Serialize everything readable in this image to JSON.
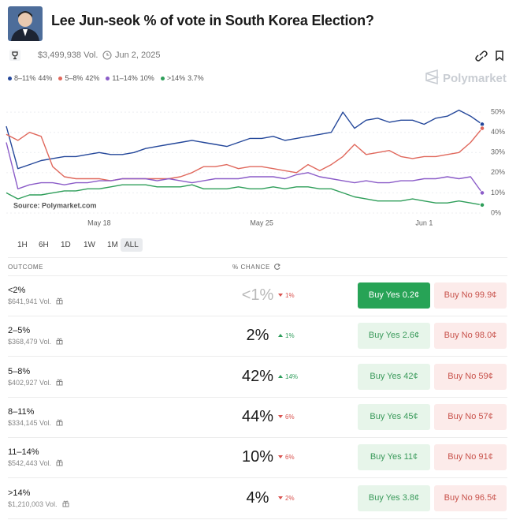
{
  "header": {
    "title": "Lee Jun-seok % of vote in South Korea Election?",
    "volume": "$3,499,938 Vol.",
    "date": "Jun 2, 2025",
    "brand": "Polymarket"
  },
  "chart_data": {
    "type": "line",
    "source": "Source: Polymarket.com",
    "categories": [
      null,
      null,
      null,
      null,
      null,
      null,
      null,
      null,
      "May 18",
      null,
      null,
      null,
      null,
      null,
      null,
      null,
      null,
      null,
      null,
      null,
      null,
      null,
      "May 25",
      null,
      null,
      null,
      null,
      null,
      null,
      null,
      null,
      null,
      null,
      null,
      null,
      null,
      "Jun 1",
      null,
      null,
      null,
      null,
      null
    ],
    "series": [
      {
        "name": "8–11%",
        "latest_label": "44%",
        "color": "#24479a",
        "values": [
          43,
          22,
          24,
          26,
          27,
          28,
          28,
          29,
          30,
          29,
          29,
          30,
          32,
          33,
          34,
          35,
          36,
          35,
          34,
          33,
          35,
          37,
          37,
          38,
          36,
          37,
          38,
          39,
          40,
          50,
          42,
          46,
          47,
          45,
          46,
          46,
          44,
          47,
          48,
          51,
          48,
          44
        ]
      },
      {
        "name": "5–8%",
        "latest_label": "42%",
        "color": "#e0685c",
        "values": [
          39,
          36,
          40,
          38,
          23,
          18,
          17,
          17,
          17,
          16,
          17,
          17,
          17,
          17,
          17,
          18,
          20,
          23,
          23,
          24,
          22,
          23,
          23,
          22,
          21,
          20,
          24,
          21,
          24,
          28,
          34,
          29,
          30,
          31,
          28,
          27,
          28,
          28,
          29,
          30,
          35,
          42
        ]
      },
      {
        "name": "11–14%",
        "latest_label": "10%",
        "color": "#8b5cc8",
        "values": [
          35,
          12,
          14,
          15,
          15,
          14,
          15,
          15,
          16,
          16,
          17,
          17,
          17,
          16,
          17,
          16,
          15,
          16,
          17,
          17,
          17,
          18,
          18,
          18,
          17,
          19,
          20,
          18,
          17,
          16,
          15,
          16,
          15,
          15,
          16,
          16,
          17,
          17,
          18,
          17,
          18,
          10
        ]
      },
      {
        "name": ">14%",
        "latest_label": "3.7%",
        "color": "#2f9e5a",
        "values": [
          10,
          7,
          9,
          9,
          10,
          11,
          11,
          12,
          12,
          13,
          14,
          14,
          14,
          13,
          13,
          13,
          14,
          12,
          12,
          12,
          13,
          12,
          12,
          13,
          12,
          13,
          13,
          12,
          12,
          10,
          8,
          7,
          6,
          6,
          6,
          7,
          6,
          5,
          5,
          6,
          5,
          4
        ]
      }
    ],
    "ylim": [
      0,
      52
    ],
    "yticks": [
      {
        "value": 0,
        "label": "0%"
      },
      {
        "value": 10,
        "label": "10%"
      },
      {
        "value": 20,
        "label": "20%"
      },
      {
        "value": 30,
        "label": "30%"
      },
      {
        "value": 40,
        "label": "40%"
      },
      {
        "value": 50,
        "label": "50%"
      }
    ],
    "grid": true
  },
  "timeframes": {
    "options": [
      "1H",
      "6H",
      "1D",
      "1W",
      "1M",
      "ALL"
    ],
    "selected": "ALL"
  },
  "table": {
    "columns": [
      "OUTCOME",
      "% CHANCE"
    ],
    "rows": [
      {
        "name": "<2%",
        "volume": "$641,941 Vol.",
        "chance": "<1%",
        "change": "1%",
        "change_direction": "down",
        "buy_yes": "Buy Yes 0.2¢",
        "buy_no": "Buy No 99.9¢"
      },
      {
        "name": "2–5%",
        "volume": "$368,479 Vol.",
        "chance": "2%",
        "change": "1%",
        "change_direction": "up",
        "buy_yes": "Buy Yes 2.6¢",
        "buy_no": "Buy No 98.0¢"
      },
      {
        "name": "5–8%",
        "volume": "$402,927 Vol.",
        "chance": "42%",
        "change": "14%",
        "change_direction": "up",
        "buy_yes": "Buy Yes 42¢",
        "buy_no": "Buy No 59¢"
      },
      {
        "name": "8–11%",
        "volume": "$334,145 Vol.",
        "chance": "44%",
        "change": "6%",
        "change_direction": "down",
        "buy_yes": "Buy Yes 45¢",
        "buy_no": "Buy No 57¢"
      },
      {
        "name": "11–14%",
        "volume": "$542,443 Vol.",
        "chance": "10%",
        "change": "6%",
        "change_direction": "down",
        "buy_yes": "Buy Yes 11¢",
        "buy_no": "Buy No 91¢"
      },
      {
        "name": ">14%",
        "volume": "$1,210,003 Vol.",
        "chance": "4%",
        "change": "2%",
        "change_direction": "down",
        "buy_yes": "Buy Yes 3.8¢",
        "buy_no": "Buy No 96.5¢"
      }
    ]
  }
}
